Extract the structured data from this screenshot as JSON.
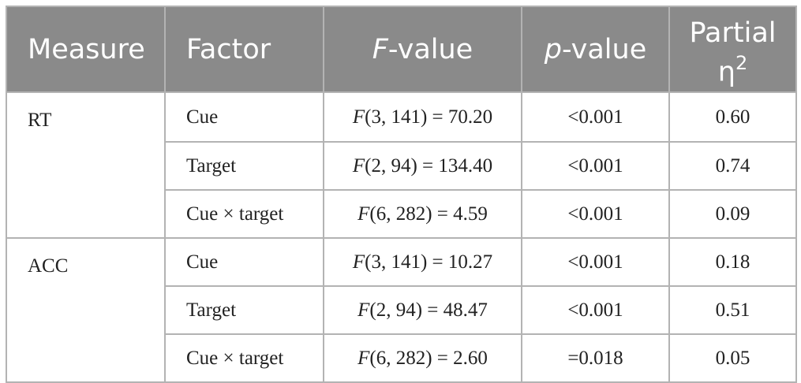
{
  "headers": {
    "measure": "Measure",
    "factor": "Factor",
    "fvalue_italic": "F",
    "fvalue_rest": "-value",
    "pvalue_italic": "p",
    "pvalue_rest": "-value",
    "partial_line1": "Partial",
    "partial_eta": "η",
    "partial_exp": "2"
  },
  "groups": [
    {
      "measure": "RT",
      "rows": [
        {
          "factor": "Cue",
          "f_letter": "F",
          "f_rest": "(3, 141) = 70.20",
          "p": "<0.001",
          "eta": "0.60"
        },
        {
          "factor": "Target",
          "f_letter": "F",
          "f_rest": "(2, 94) = 134.40",
          "p": "<0.001",
          "eta": "0.74"
        },
        {
          "factor": "Cue × target",
          "f_letter": "F",
          "f_rest": "(6, 282) = 4.59",
          "p": "<0.001",
          "eta": "0.09"
        }
      ]
    },
    {
      "measure": "ACC",
      "rows": [
        {
          "factor": "Cue",
          "f_letter": "F",
          "f_rest": "(3, 141) = 10.27",
          "p": "<0.001",
          "eta": "0.18"
        },
        {
          "factor": "Target",
          "f_letter": "F",
          "f_rest": "(2, 94) = 48.47",
          "p": "<0.001",
          "eta": "0.51"
        },
        {
          "factor": "Cue × target",
          "f_letter": "F",
          "f_rest": "(6, 282) = 2.60",
          "p": "=0.018",
          "eta": "0.05"
        }
      ]
    }
  ]
}
